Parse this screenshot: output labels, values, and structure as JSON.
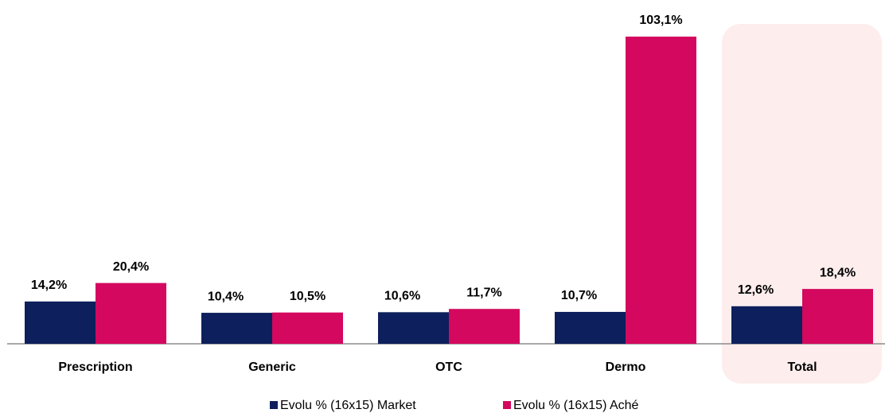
{
  "chart_data": {
    "type": "bar",
    "categories": [
      "Prescription",
      "Generic",
      "OTC",
      "Dermo",
      "Total"
    ],
    "series": [
      {
        "name": "Evolu % (16x15) Market",
        "color": "#0d1f5c",
        "values": [
          14.2,
          10.4,
          10.6,
          10.7,
          12.6
        ],
        "value_labels": [
          "14,2%",
          "10,4%",
          "10,6%",
          "10,7%",
          "12,6%"
        ]
      },
      {
        "name": "Evolu % (16x15) Aché",
        "color": "#d4085f",
        "values": [
          20.4,
          10.5,
          11.7,
          103.1,
          18.4
        ],
        "value_labels": [
          "20,4%",
          "10,5%",
          "11,7%",
          "103,1%",
          "18,4%"
        ]
      }
    ]
  }
}
